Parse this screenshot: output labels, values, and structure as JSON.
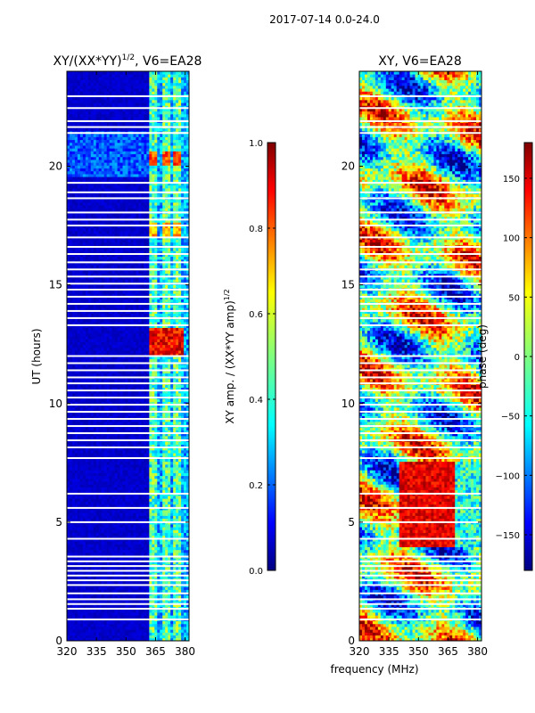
{
  "suptitle": "2017-07-14 0.0-24.0",
  "chart_data": [
    {
      "type": "heatmap",
      "title_main": "XY/(XX*YY)",
      "title_exp": "1/2",
      "title_suffix": ", V6=EA28",
      "xlabel": "",
      "ylabel": "UT (hours)",
      "xlim": [
        320,
        382
      ],
      "ylim": [
        0,
        24
      ],
      "xticks": [
        320,
        335,
        350,
        365,
        380
      ],
      "yticks": [
        0,
        5,
        10,
        15,
        20
      ],
      "colormap": "jet",
      "colorbar": {
        "label_main": "XY amp. / (XX*YY amp)",
        "label_exp": "1/2",
        "range": [
          0.0,
          1.0
        ],
        "ticks": [
          "0.0",
          "0.2",
          "0.4",
          "0.6",
          "0.8",
          "1.0"
        ]
      }
    },
    {
      "type": "heatmap",
      "title_main": "XY, V6=EA28",
      "xlabel": "frequency (MHz)",
      "ylabel": "",
      "xlim": [
        320,
        382
      ],
      "ylim": [
        0,
        24
      ],
      "xticks": [
        320,
        335,
        350,
        365,
        380
      ],
      "yticks": [
        0,
        5,
        10,
        15,
        20
      ],
      "colormap": "jet",
      "colorbar": {
        "label_main": "phase (deg)",
        "range": [
          -180,
          180
        ],
        "ticks": [
          "−150",
          "−100",
          "−50",
          "0",
          "50",
          "100",
          "150"
        ]
      }
    }
  ],
  "colors": {
    "jet": [
      "#00007f",
      "#0000ff",
      "#007fff",
      "#00ffff",
      "#7fff7f",
      "#ffff00",
      "#ff7f00",
      "#ff0000",
      "#7f0000"
    ]
  }
}
